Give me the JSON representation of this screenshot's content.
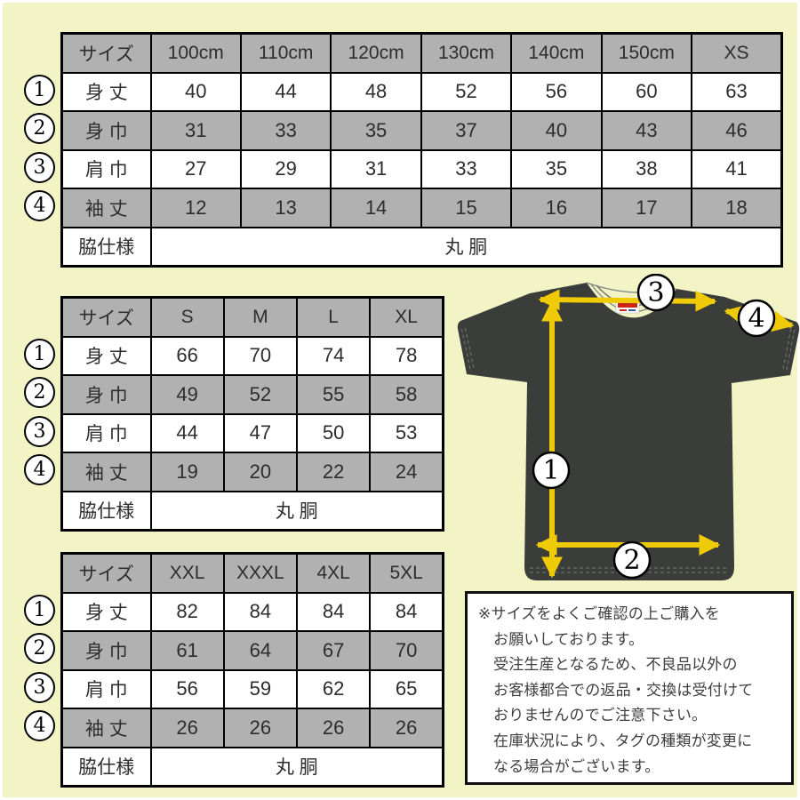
{
  "colors": {
    "page_background": "#f2f4c5",
    "table_gray": "#b1b1b1",
    "table_border": "#000000",
    "shirt_body": "#3a3d3a",
    "arrow_yellow": "#efca06",
    "note_text": "#3e3e3e"
  },
  "tables": [
    {
      "title": "kids-sizes",
      "header": [
        "サイズ",
        "100cm",
        "110cm",
        "120cm",
        "130cm",
        "140cm",
        "150cm",
        "XS"
      ],
      "rows": [
        {
          "marker": "1",
          "label": "身 丈",
          "values": [
            40,
            44,
            48,
            52,
            56,
            60,
            63
          ]
        },
        {
          "marker": "2",
          "label": "身 巾",
          "values": [
            31,
            33,
            35,
            37,
            40,
            43,
            46
          ]
        },
        {
          "marker": "3",
          "label": "肩 巾",
          "values": [
            27,
            29,
            31,
            33,
            35,
            38,
            41
          ]
        },
        {
          "marker": "4",
          "label": "袖 丈",
          "values": [
            12,
            13,
            14,
            15,
            16,
            17,
            18
          ]
        }
      ],
      "footer_label": "脇仕様",
      "footer_value": "丸 胴"
    },
    {
      "title": "adult-sizes",
      "header": [
        "サイズ",
        "S",
        "M",
        "L",
        "XL"
      ],
      "rows": [
        {
          "marker": "1",
          "label": "身 丈",
          "values": [
            66,
            70,
            74,
            78
          ]
        },
        {
          "marker": "2",
          "label": "身 巾",
          "values": [
            49,
            52,
            55,
            58
          ]
        },
        {
          "marker": "3",
          "label": "肩 巾",
          "values": [
            44,
            47,
            50,
            53
          ]
        },
        {
          "marker": "4",
          "label": "袖 丈",
          "values": [
            19,
            20,
            22,
            24
          ]
        }
      ],
      "footer_label": "脇仕様",
      "footer_value": "丸 胴"
    },
    {
      "title": "big-sizes",
      "header": [
        "サイズ",
        "XXL",
        "XXXL",
        "4XL",
        "5XL"
      ],
      "rows": [
        {
          "marker": "1",
          "label": "身 丈",
          "values": [
            82,
            84,
            84,
            84
          ]
        },
        {
          "marker": "2",
          "label": "身 巾",
          "values": [
            61,
            64,
            67,
            70
          ]
        },
        {
          "marker": "3",
          "label": "肩 巾",
          "values": [
            56,
            59,
            62,
            65
          ]
        },
        {
          "marker": "4",
          "label": "袖 丈",
          "values": [
            26,
            26,
            26,
            26
          ]
        }
      ],
      "footer_label": "脇仕様",
      "footer_value": "丸 胴"
    }
  ],
  "shirt": {
    "markers": [
      {
        "label": "1"
      },
      {
        "label": "2"
      },
      {
        "label": "3"
      },
      {
        "label": "4"
      }
    ]
  },
  "note": {
    "lines": [
      "※サイズをよくご確認の上ご購入を",
      "お願いしております。",
      "受注生産となるため、不良品以外の",
      "お客様都合での返品・交換は受付けて",
      "おりませんのでご注意下さい。",
      "在庫状況により、タグの種類が変更に",
      "なる場合がございます。"
    ]
  }
}
